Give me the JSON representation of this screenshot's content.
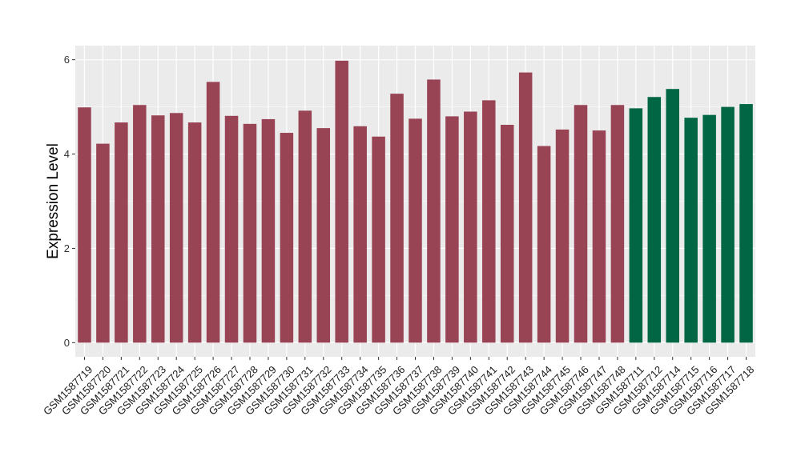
{
  "chart_data": {
    "type": "bar",
    "title": "",
    "xlabel": "",
    "ylabel": "Expression Level",
    "ylim": [
      -0.3,
      6.3
    ],
    "yticks": [
      0,
      2,
      4,
      6
    ],
    "grid": true,
    "legend": "none",
    "colors": {
      "group1": "#994455",
      "group2": "#006644",
      "panel_background": "#ebebeb",
      "grid": "#ffffff"
    },
    "categories": [
      "GSM1587719",
      "GSM1587720",
      "GSM1587721",
      "GSM1587722",
      "GSM1587723",
      "GSM1587724",
      "GSM1587725",
      "GSM1587726",
      "GSM1587727",
      "GSM1587728",
      "GSM1587729",
      "GSM1587730",
      "GSM1587731",
      "GSM1587732",
      "GSM1587733",
      "GSM1587734",
      "GSM1587735",
      "GSM1587736",
      "GSM1587737",
      "GSM1587738",
      "GSM1587739",
      "GSM1587740",
      "GSM1587741",
      "GSM1587742",
      "GSM1587743",
      "GSM1587744",
      "GSM1587745",
      "GSM1587746",
      "GSM1587747",
      "GSM1587748",
      "GSM1587711",
      "GSM1587712",
      "GSM1587714",
      "GSM1587715",
      "GSM1587716",
      "GSM1587717",
      "GSM1587718"
    ],
    "values": [
      4.99,
      4.22,
      4.67,
      5.04,
      4.82,
      4.87,
      4.67,
      5.53,
      4.81,
      4.64,
      4.74,
      4.45,
      4.92,
      4.55,
      5.98,
      4.59,
      4.37,
      5.28,
      4.75,
      5.58,
      4.8,
      4.9,
      5.14,
      4.62,
      5.73,
      4.17,
      4.52,
      5.04,
      4.5,
      5.04,
      4.97,
      5.21,
      5.38,
      4.77,
      4.83,
      5.0,
      5.06
    ],
    "groups": [
      "group1",
      "group1",
      "group1",
      "group1",
      "group1",
      "group1",
      "group1",
      "group1",
      "group1",
      "group1",
      "group1",
      "group1",
      "group1",
      "group1",
      "group1",
      "group1",
      "group1",
      "group1",
      "group1",
      "group1",
      "group1",
      "group1",
      "group1",
      "group1",
      "group1",
      "group1",
      "group1",
      "group1",
      "group1",
      "group1",
      "group2",
      "group2",
      "group2",
      "group2",
      "group2",
      "group2",
      "group2"
    ]
  }
}
